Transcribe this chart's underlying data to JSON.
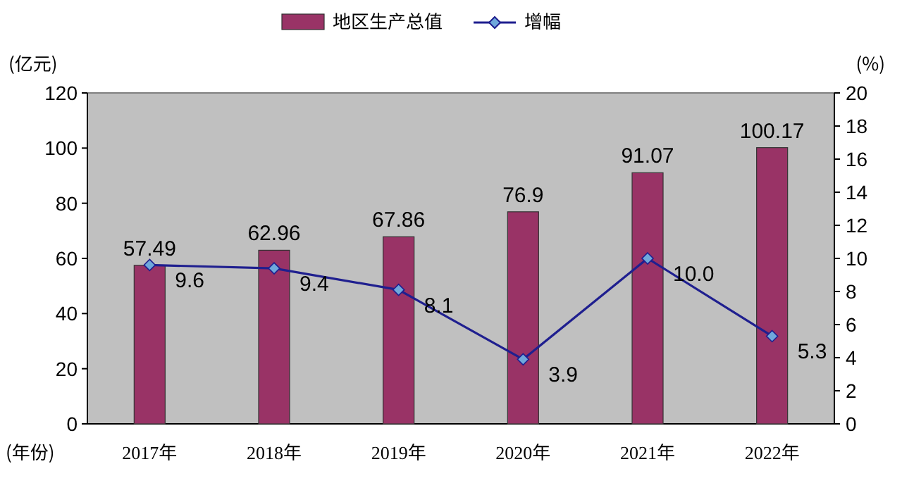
{
  "chart_data": {
    "type": "bar",
    "categories": [
      "2017年",
      "2018年",
      "2019年",
      "2020年",
      "2021年",
      "2022年"
    ],
    "series": [
      {
        "name": "地区生产总值",
        "color": "#993366",
        "values": [
          57.49,
          62.96,
          67.86,
          76.9,
          91.07,
          100.17
        ],
        "value_labels": [
          "57.49",
          "62.96",
          "67.86",
          "76.9",
          "91.07",
          "100.17"
        ]
      },
      {
        "name": "增幅",
        "type": "line",
        "axis": "y2",
        "color": "#1f1f8f",
        "marker": "diamond",
        "values": [
          9.6,
          9.4,
          8.1,
          3.9,
          10.0,
          5.3
        ],
        "value_labels": [
          "9.6",
          "9.4",
          "8.1",
          "3.9",
          "10.0",
          "5.3"
        ]
      }
    ],
    "ylabel": "(亿元)",
    "y2label": "(%)",
    "xlabel": "(年份)",
    "ylim": [
      0,
      120
    ],
    "yticks": [
      0,
      20,
      40,
      60,
      80,
      100,
      120
    ],
    "y2lim": [
      0,
      20
    ],
    "y2ticks": [
      0,
      2,
      4,
      6,
      8,
      10,
      12,
      14,
      16,
      18,
      20
    ],
    "legend": "top",
    "grid": false
  }
}
